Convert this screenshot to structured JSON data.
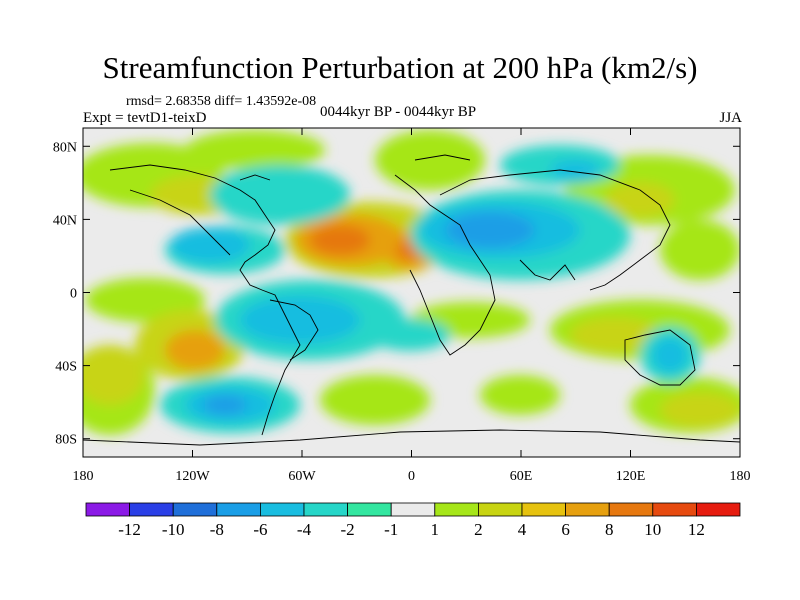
{
  "title": "Streamfunction Perturbation at 200 hPa (km2/s)",
  "rmsd_line": "rmsd= 2.68358  diff= 1.43592e-08",
  "experiment": "Expt = tevtD1-teixD",
  "period": "0044kyr BP - 0044kyr BP",
  "season": "JJA",
  "map": {
    "projection": "cylindrical equidistant",
    "lon_range": [
      -180,
      180
    ],
    "lat_range": [
      -90,
      90
    ],
    "lat_ticks": [
      {
        "value": 80,
        "label": "80N"
      },
      {
        "value": 40,
        "label": "40N"
      },
      {
        "value": 0,
        "label": "0"
      },
      {
        "value": -40,
        "label": "40S"
      },
      {
        "value": -80,
        "label": "80S"
      }
    ],
    "lon_ticks": [
      {
        "value": -180,
        "label": "180"
      },
      {
        "value": -120,
        "label": "120W"
      },
      {
        "value": -60,
        "label": "60W"
      },
      {
        "value": 0,
        "label": "0"
      },
      {
        "value": 60,
        "label": "60E"
      },
      {
        "value": 120,
        "label": "120E"
      },
      {
        "value": 180,
        "label": "180"
      }
    ]
  },
  "colorbar": {
    "colors": [
      "#8b1ae6",
      "#2a3fe6",
      "#1f6fd9",
      "#1a9ee6",
      "#19bde0",
      "#26d6c8",
      "#33e6a0",
      "#ebebeb",
      "#a6e619",
      "#c8d412",
      "#e6c20f",
      "#e6a00f",
      "#e6780f",
      "#e64a0f",
      "#e61c0f"
    ],
    "labels": [
      "-12",
      "-10",
      "-8",
      "-6",
      "-4",
      "-2",
      "-1",
      "1",
      "2",
      "4",
      "6",
      "8",
      "10",
      "12"
    ]
  },
  "chart_data": {
    "type": "contour-map",
    "field": "Streamfunction Perturbation at 200 hPa",
    "units": "km2/s",
    "levels": [
      -12,
      -10,
      -8,
      -6,
      -4,
      -2,
      -1,
      1,
      2,
      4,
      6,
      8,
      10,
      12
    ],
    "approx_features": [
      {
        "sign": "positive",
        "lon": -35,
        "lat": 30,
        "max": 9
      },
      {
        "sign": "positive",
        "lon": -10,
        "lat": 25,
        "max": 8
      },
      {
        "sign": "positive",
        "lon": -120,
        "lat": -30,
        "max": 7
      },
      {
        "sign": "positive",
        "lon": -170,
        "lat": 50,
        "max": 3
      },
      {
        "sign": "negative",
        "lon": 40,
        "lat": 35,
        "max": -6
      },
      {
        "sign": "negative",
        "lon": 60,
        "lat": 35,
        "max": -6
      },
      {
        "sign": "negative",
        "lon": -110,
        "lat": -60,
        "max": -6
      },
      {
        "sign": "negative",
        "lon": -115,
        "lat": 30,
        "max": -5
      },
      {
        "sign": "negative",
        "lon": -60,
        "lat": -10,
        "max": -4
      },
      {
        "sign": "negative",
        "lon": 145,
        "lat": -25,
        "max": -4
      }
    ]
  }
}
